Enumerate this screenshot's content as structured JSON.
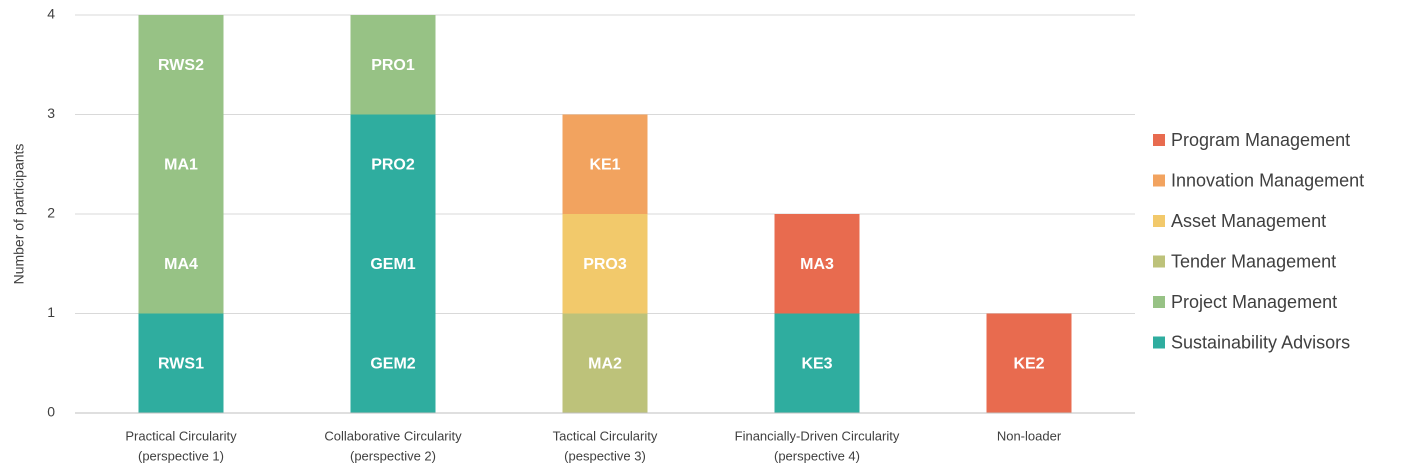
{
  "chart_data": {
    "type": "stacked_bar",
    "y_label": "Number of participants",
    "categories": [
      [
        "Practical Circularity",
        "(perspective 1)"
      ],
      [
        "Collaborative Circularity",
        "(perspective 2)"
      ],
      [
        "Tactical Circularity",
        "(pespective 3)"
      ],
      [
        "Financially-Driven Circularity",
        "(perspective 4)"
      ],
      [
        "Non-loader"
      ]
    ],
    "series": [
      {
        "name": "Sustainability Advisors",
        "color": "#2fad9f",
        "values": [
          1,
          3,
          0,
          1,
          0
        ],
        "participants": [
          [
            "RWS1"
          ],
          [
            "GEM2",
            "GEM1",
            "PRO2"
          ],
          [],
          [
            "KE3"
          ],
          []
        ]
      },
      {
        "name": "Project Management",
        "color": "#97c285",
        "values": [
          3,
          1,
          0,
          0,
          0
        ],
        "participants": [
          [
            "MA4",
            "MA1",
            "RWS2"
          ],
          [
            "PRO1"
          ],
          [],
          [],
          []
        ]
      },
      {
        "name": "Tender Management",
        "color": "#bdc27a",
        "values": [
          0,
          0,
          1,
          0,
          0
        ],
        "participants": [
          [],
          [],
          [
            "MA2"
          ],
          [],
          []
        ]
      },
      {
        "name": "Asset Management",
        "color": "#f2c96b",
        "values": [
          0,
          0,
          1,
          0,
          0
        ],
        "participants": [
          [],
          [],
          [
            "PRO3"
          ],
          [],
          []
        ]
      },
      {
        "name": "Innovation Management",
        "color": "#f2a35f",
        "values": [
          0,
          0,
          1,
          0,
          0
        ],
        "participants": [
          [],
          [],
          [
            "KE1"
          ],
          [],
          []
        ]
      },
      {
        "name": "Program Management",
        "color": "#e86b4f",
        "values": [
          0,
          0,
          0,
          1,
          1
        ],
        "participants": [
          [],
          [],
          [],
          [
            "MA3"
          ],
          [
            "KE2"
          ]
        ]
      }
    ],
    "ylim": [
      0,
      4
    ],
    "yticks": [
      0,
      1,
      2,
      3,
      4
    ],
    "grid": true,
    "legend": "right"
  }
}
